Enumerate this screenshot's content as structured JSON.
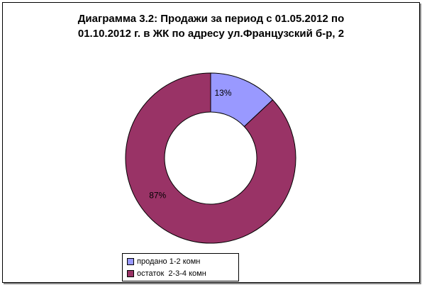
{
  "chart_data": {
    "type": "pie",
    "subtype": "doughnut",
    "title_lines": [
      "Диаграмма 3.2: Продажи за период с 01.05.2012 по",
      "01.10.2012 г. в ЖК по адресу ул.Французский б-р, 2"
    ],
    "slices": [
      {
        "name": "продано 1-2 комн",
        "value": 13,
        "label": "13%",
        "color": "#9999ff"
      },
      {
        "name": "остаток  2-3-4 комн",
        "value": 87,
        "label": "87%",
        "color": "#993366"
      }
    ],
    "legend_position": "bottom"
  }
}
